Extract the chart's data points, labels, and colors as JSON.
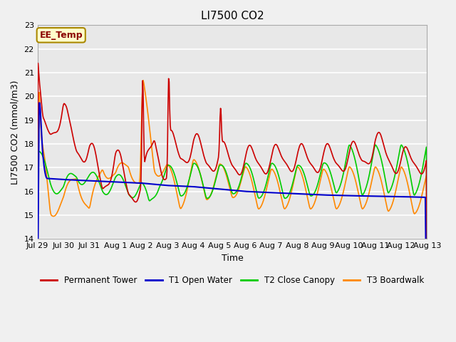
{
  "title": "LI7500 CO2",
  "ylabel": "LI7500 CO2 (mmol/m3)",
  "xlabel": "Time",
  "annotation": "EE_Temp",
  "ylim": [
    14.0,
    23.0
  ],
  "yticks": [
    14.0,
    15.0,
    16.0,
    17.0,
    18.0,
    19.0,
    20.0,
    21.0,
    22.0,
    23.0
  ],
  "bg_color": "#e8e8e8",
  "grid_color": "#ffffff",
  "series": {
    "red": {
      "label": "Permanent Tower",
      "color": "#cc0000",
      "lw": 1.2
    },
    "blue": {
      "label": "T1 Open Water",
      "color": "#0000cc",
      "lw": 1.5
    },
    "green": {
      "label": "T2 Close Canopy",
      "color": "#00cc00",
      "lw": 1.2
    },
    "orange": {
      "label": "T3 Boardwalk",
      "color": "#ff8800",
      "lw": 1.2
    }
  },
  "xtick_positions": [
    0,
    1,
    2,
    3,
    4,
    5,
    6,
    7,
    8,
    9,
    10,
    11,
    12,
    13,
    14,
    15
  ],
  "xtick_labels": [
    "Jul 29",
    "Jul 30",
    "Jul 31",
    "Aug 1",
    "Aug 2",
    "Aug 3",
    "Aug 4",
    "Aug 5",
    "Aug 6",
    "Aug 7",
    "Aug 8",
    "Aug 9",
    "Aug 10",
    "Aug 11",
    "Aug 12",
    "Aug 13"
  ],
  "n_days": 15,
  "annotation_bbox": {
    "facecolor": "#ffffcc",
    "edgecolor": "#aa8800",
    "lw": 1.5
  }
}
